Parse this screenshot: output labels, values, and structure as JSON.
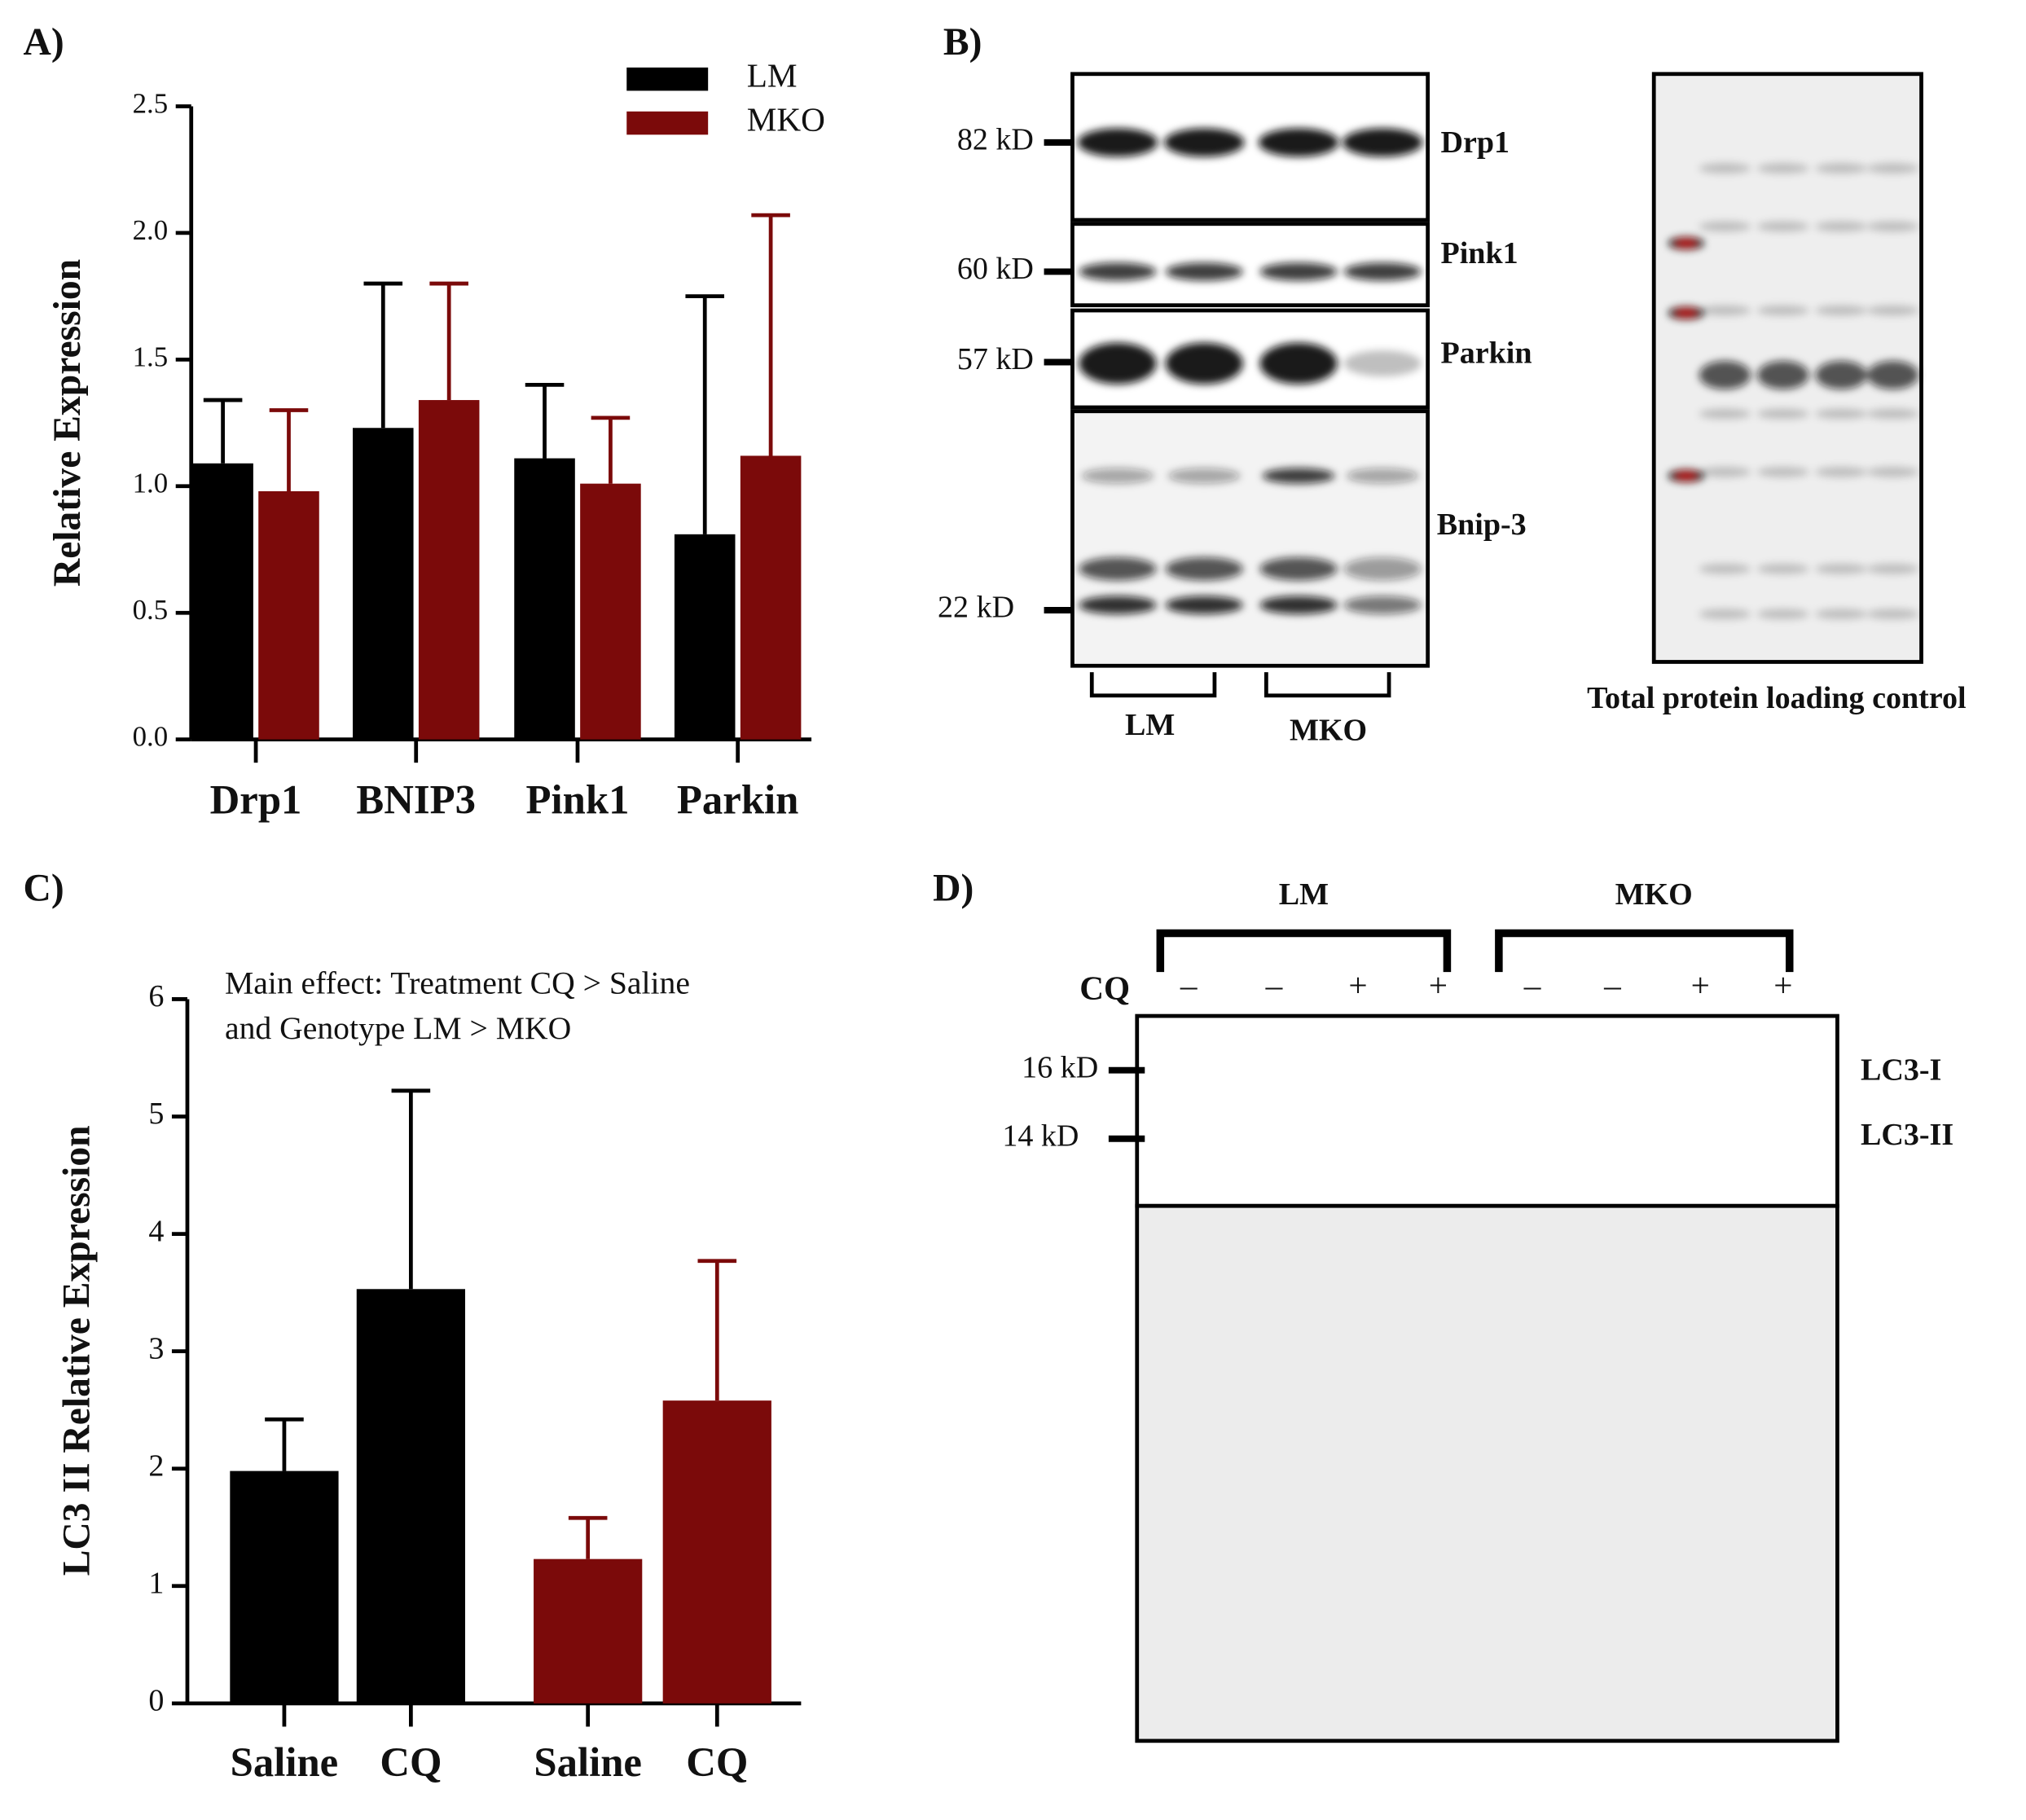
{
  "chart_data": [
    {
      "type": "bar",
      "ylabel": "Relative Expression",
      "categories": [
        "Drp1",
        "BNIP3",
        "Pink1",
        "Parkin"
      ],
      "series": [
        {
          "name": "LM",
          "color": "#000000",
          "values": [
            1.09,
            1.23,
            1.11,
            0.81
          ],
          "errors": [
            0.25,
            0.57,
            0.29,
            0.94
          ]
        },
        {
          "name": "MKO",
          "color": "#7b0a0a",
          "values": [
            0.98,
            1.34,
            1.01,
            1.12
          ],
          "errors": [
            0.32,
            0.46,
            0.26,
            0.95
          ]
        }
      ],
      "ylim": [
        0,
        2.5
      ],
      "yticks": [
        {
          "value": 0,
          "label": "0.0"
        },
        0.5,
        {
          "value": 1,
          "label": "1.0"
        },
        1.5,
        {
          "value": 2,
          "label": "2.0"
        },
        2.5
      ],
      "legend": "top-right"
    },
    {
      "type": "bar",
      "ylabel": "LC3 II Relative Expression",
      "annotation": [
        "Main effect: Treatment CQ > Saline",
        "and Genotype LM > MKO"
      ],
      "categories": [
        "Saline",
        "CQ",
        "Saline",
        "CQ"
      ],
      "values": [
        1.98,
        3.53,
        1.23,
        2.58
      ],
      "errors": [
        0.44,
        1.69,
        0.35,
        1.19
      ],
      "colors": [
        "#000000",
        "#000000",
        "#7b0a0a",
        "#7b0a0a"
      ],
      "ylim": [
        0,
        6
      ],
      "yticks": [
        0,
        1,
        2,
        3,
        4,
        5,
        6
      ]
    }
  ],
  "figure": {
    "panels": [
      "A)",
      "B)",
      "C)",
      "D)"
    ],
    "blot_b": {
      "markers": [
        "82 kD",
        "60 kD",
        "57 kD",
        "22 kD"
      ],
      "proteins": [
        "Drp1",
        "Pink1",
        "Parkin",
        "Bnip-3"
      ],
      "groups": [
        "LM",
        "MKO"
      ],
      "caption": "Total protein loading control"
    },
    "blot_d": {
      "groups": [
        "LM",
        "MKO"
      ],
      "treatment": "CQ",
      "signs": [
        "–",
        "–",
        "+",
        "+",
        "–",
        "–",
        "+",
        "+"
      ],
      "markers": [
        "16 kD",
        "14 kD"
      ],
      "bands": [
        "LC3-I",
        "LC3-II"
      ]
    }
  }
}
